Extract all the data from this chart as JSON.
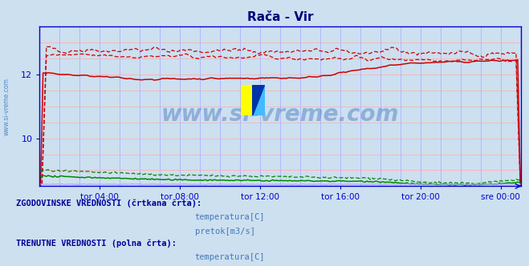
{
  "title": "Rača - Vir",
  "title_color": "#000080",
  "bg_color": "#cce0f0",
  "plot_bg_color": "#cce0f0",
  "axis_color": "#0000cc",
  "grid_h_color": "#ffb0b0",
  "grid_v_color": "#b0b0ff",
  "x_tick_labels": [
    "tor 04:00",
    "tor 08:00",
    "tor 12:00",
    "tor 16:00",
    "tor 20:00",
    "sre 00:00"
  ],
  "x_tick_positions": [
    0.125,
    0.291,
    0.458,
    0.625,
    0.791,
    0.958
  ],
  "y_ticks": [
    10,
    12
  ],
  "ylim": [
    8.5,
    13.5
  ],
  "xlim": [
    0,
    1
  ],
  "temp_hist_color": "#cc0000",
  "temp_curr_color": "#cc0000",
  "flow_hist_color": "#008800",
  "flow_curr_color": "#008800",
  "height_color": "#aaaaff",
  "watermark_text": "www.si-vreme.com",
  "watermark_color": "#4477bb",
  "sidebar_text": "www.si-vreme.com",
  "sidebar_color": "#4477bb",
  "legend_title1": "ZGODOVINSKE VREDNOSTI (črtkana črta):",
  "legend_title2": "TRENUTNE VREDNOSTI (polna črta):",
  "legend_text_color": "#000099",
  "legend_item_color": "#4477bb",
  "legend_item1": "temperatura[C]",
  "legend_item2": "pretok[m3/s]",
  "n_points": 288
}
